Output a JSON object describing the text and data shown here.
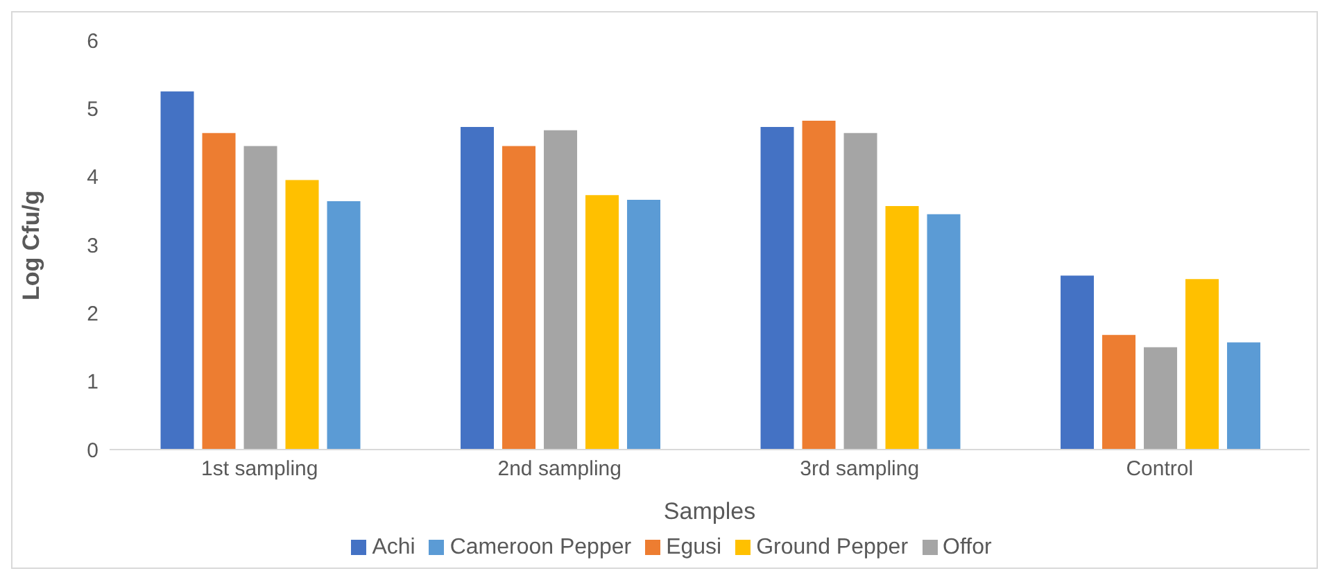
{
  "chart_data": {
    "type": "bar",
    "xlabel": "Samples",
    "ylabel": "Log Cfu/g",
    "categories": [
      "1st sampling",
      "2nd sampling",
      "3rd sampling",
      "Control"
    ],
    "series": [
      {
        "name": "Achi",
        "color": "#4472c4",
        "values": [
          5.25,
          4.73,
          4.73,
          2.55
        ]
      },
      {
        "name": "Egusi",
        "color": "#ed7d31",
        "values": [
          4.64,
          4.45,
          4.82,
          1.68
        ]
      },
      {
        "name": "Offor",
        "color": "#a5a5a5",
        "values": [
          4.45,
          4.68,
          4.64,
          1.5
        ]
      },
      {
        "name": "Ground Pepper",
        "color": "#ffc000",
        "values": [
          3.95,
          3.73,
          3.57,
          2.5
        ]
      },
      {
        "name": "Cameroon Pepper",
        "color": "#5b9bd5",
        "values": [
          3.64,
          3.66,
          3.45,
          1.57
        ]
      }
    ],
    "ylim": [
      0,
      6
    ],
    "yticks": [
      0,
      1,
      2,
      3,
      4,
      5,
      6
    ],
    "grid": false,
    "legend": "bottom"
  }
}
